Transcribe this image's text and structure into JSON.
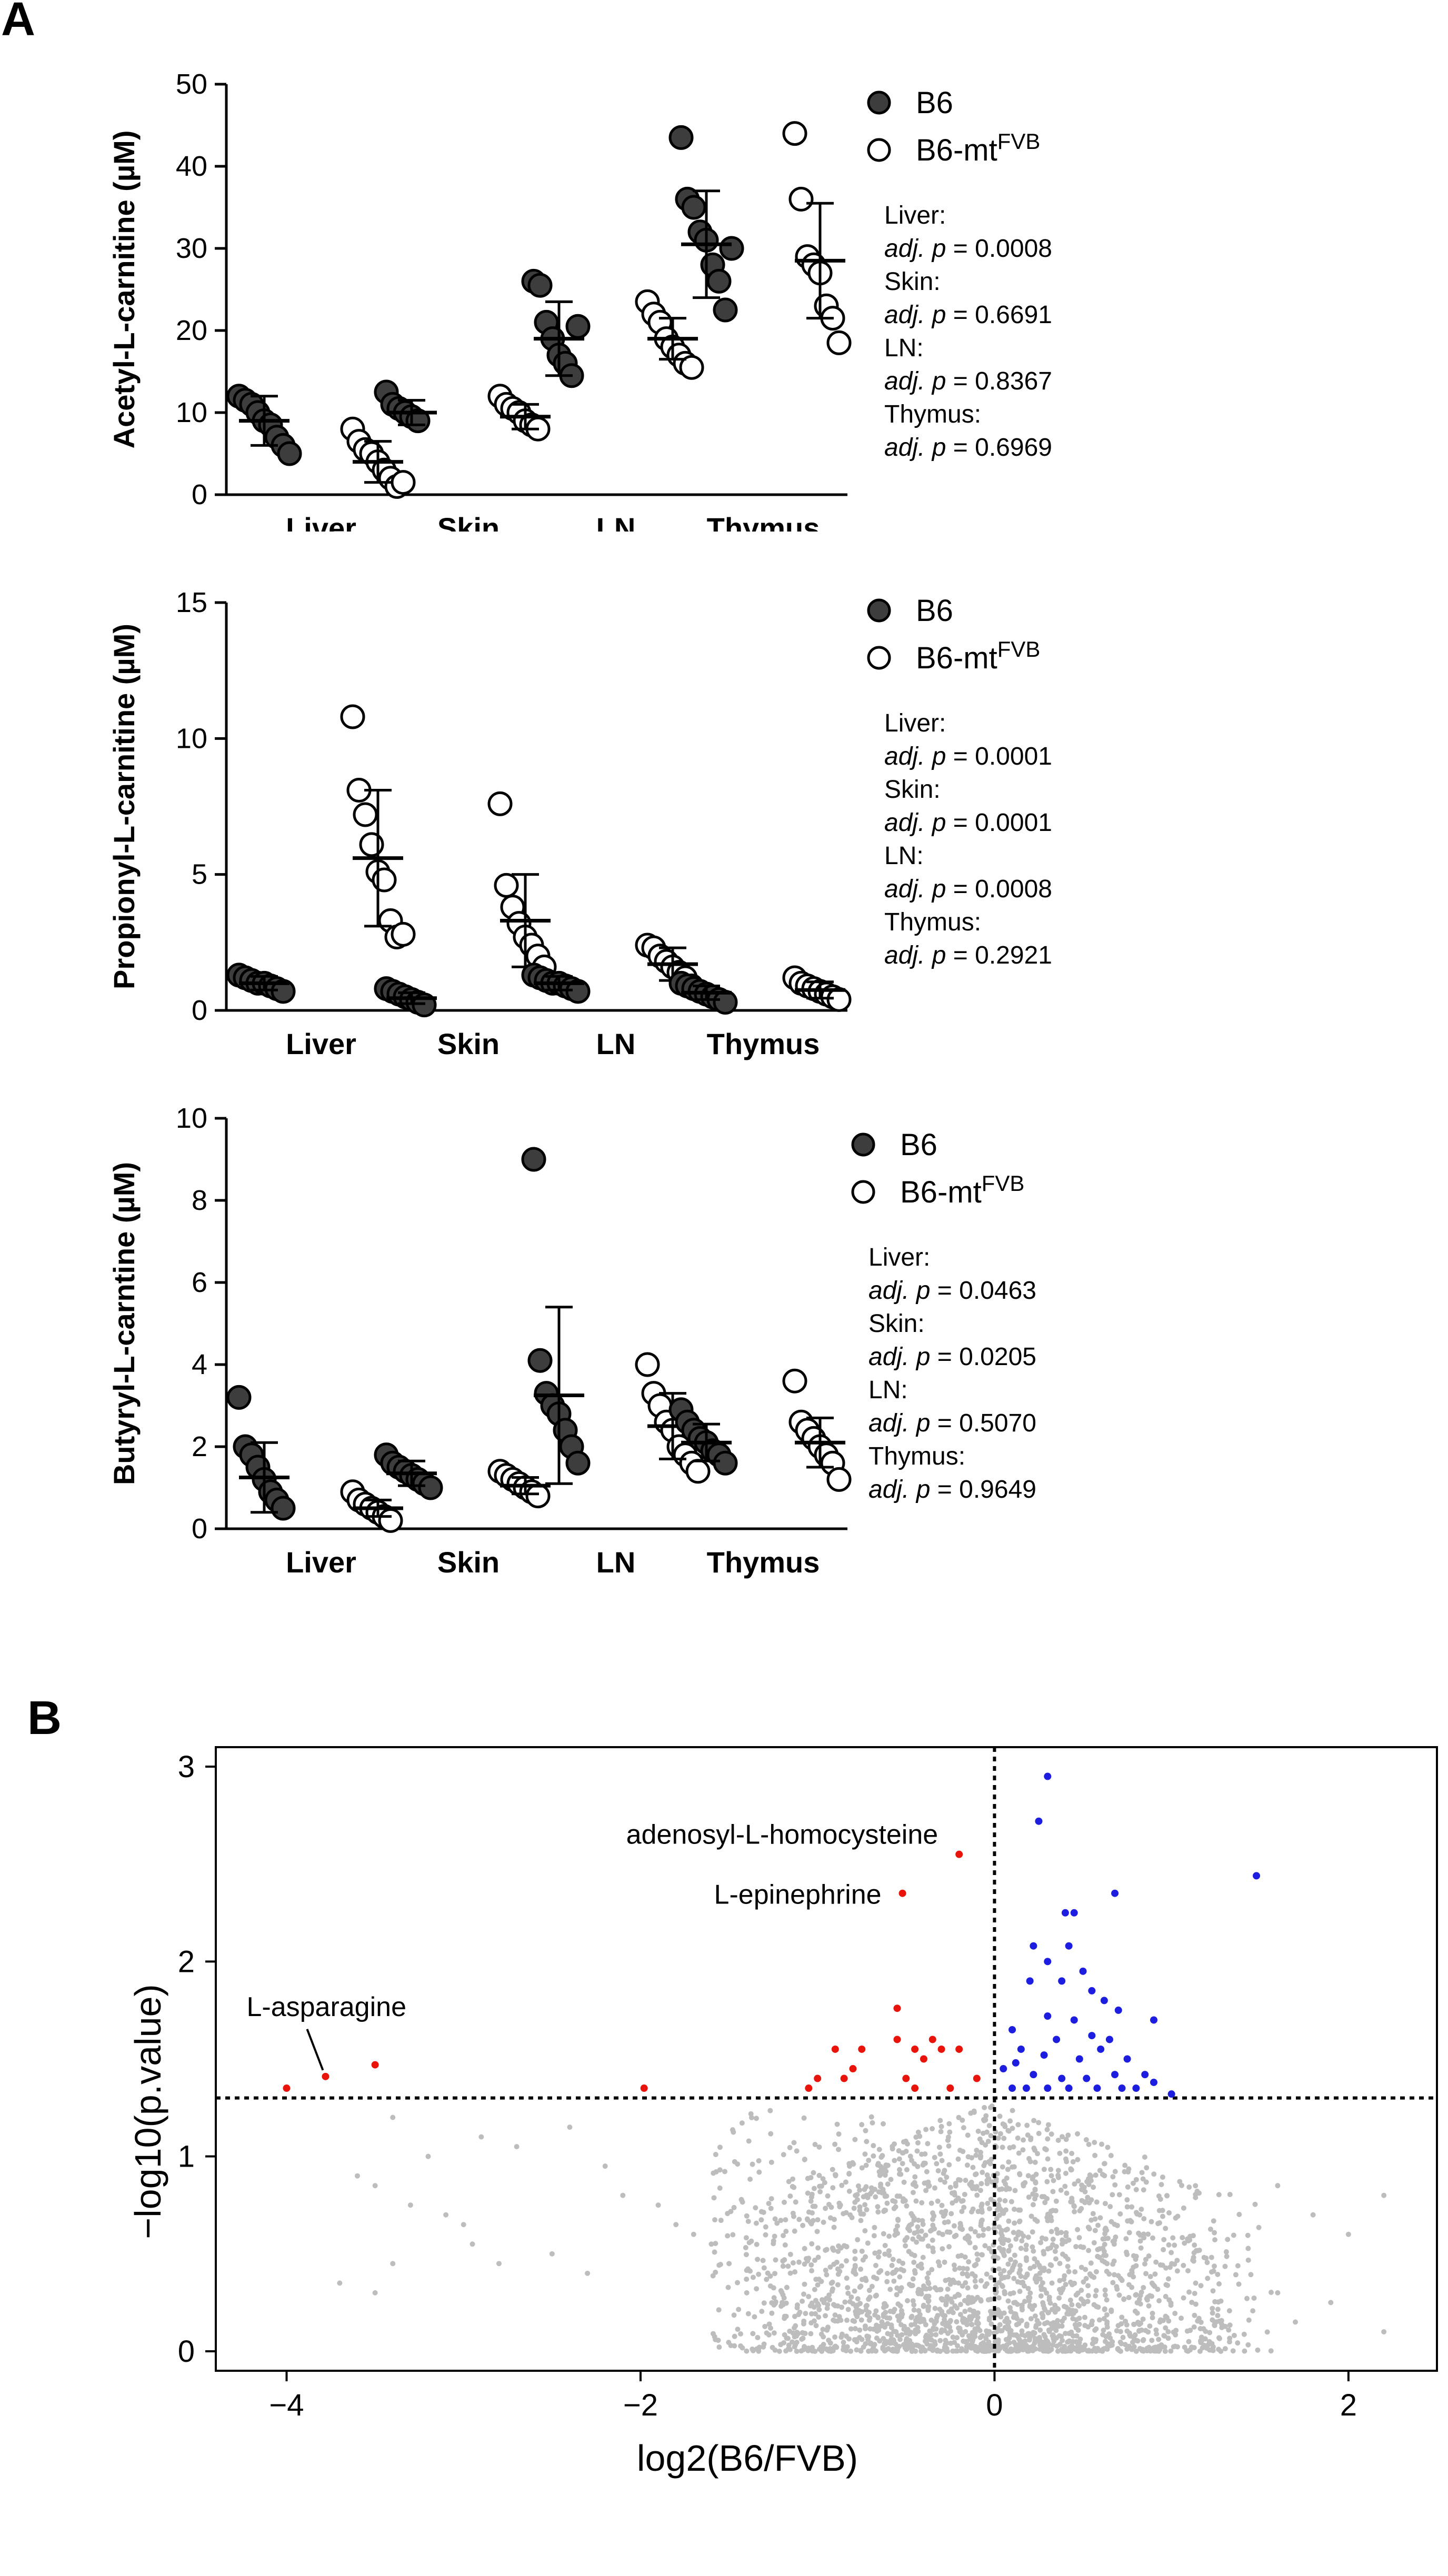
{
  "panels": [
    {
      "letter": "A"
    },
    {
      "letter": "B"
    }
  ],
  "legend": {
    "b6": "B6",
    "mt_prefix": "B6-mt",
    "mt_super": "FVB"
  },
  "stats_labels": {
    "adj": "adj.",
    "p": "p"
  },
  "chart_data": [
    {
      "type": "scatter",
      "subtype": "grouped-dot-plot",
      "title": "",
      "ylabel": "Acetyl-L-carnitine (µM)",
      "ylim": [
        0,
        50
      ],
      "yticks": [
        0,
        10,
        20,
        30,
        40,
        50
      ],
      "categories": [
        "Liver",
        "Skin",
        "LN",
        "Thymus"
      ],
      "series": [
        {
          "name": "B6",
          "fill": "#3d3d3d",
          "means": [
            9,
            10,
            19,
            30.5
          ],
          "sd": [
            3,
            1.5,
            4.5,
            6.5
          ],
          "points": [
            [
              12,
              11.5,
              11,
              10,
              9,
              8.5,
              7,
              6,
              5
            ],
            [
              12.5,
              11,
              10.5,
              10,
              9.5,
              9
            ],
            [
              26,
              25.5,
              21,
              19,
              17,
              16,
              14.5,
              20.5
            ],
            [
              43.5,
              36,
              35,
              32,
              31,
              28,
              26,
              22.5,
              30
            ]
          ]
        },
        {
          "name": "B6-mtFVB",
          "fill": "#ffffff",
          "means": [
            4,
            9.5,
            19,
            28.5
          ],
          "sd": [
            2.5,
            1.5,
            2.5,
            7
          ],
          "points": [
            [
              8,
              6.5,
              5.5,
              5,
              4,
              3,
              2,
              1,
              1.5
            ],
            [
              12,
              11,
              10.5,
              10,
              9,
              8.5,
              8
            ],
            [
              23.5,
              22,
              21,
              19,
              18,
              17,
              16,
              15.5
            ],
            [
              44,
              36,
              29,
              28,
              27,
              23,
              21.5,
              18.5
            ]
          ]
        }
      ],
      "stats": [
        {
          "tissue": "Liver:",
          "value": "= 0.0008"
        },
        {
          "tissue": "Skin:",
          "value": "= 0.6691"
        },
        {
          "tissue": "LN:",
          "value": "= 0.8367"
        },
        {
          "tissue": "Thymus:",
          "value": "= 0.6969"
        }
      ]
    },
    {
      "type": "scatter",
      "subtype": "grouped-dot-plot",
      "title": "",
      "ylabel": "Propionyl-L-carnitine (µM)",
      "ylim": [
        0,
        15
      ],
      "yticks": [
        0,
        5,
        10,
        15
      ],
      "categories": [
        "Liver",
        "Skin",
        "LN",
        "Thymus"
      ],
      "series": [
        {
          "name": "B6",
          "fill": "#3d3d3d",
          "means": [
            1.0,
            0.45,
            1.0,
            0.65
          ],
          "sd": [
            0.25,
            0.2,
            0.25,
            0.25
          ],
          "points": [
            [
              1.3,
              1.2,
              1.1,
              1.0,
              1.0,
              0.9,
              0.8,
              0.7
            ],
            [
              0.8,
              0.7,
              0.6,
              0.5,
              0.4,
              0.3,
              0.2
            ],
            [
              1.3,
              1.2,
              1.1,
              1.0,
              1.0,
              0.9,
              0.8,
              0.7
            ],
            [
              1.0,
              0.9,
              0.8,
              0.7,
              0.6,
              0.5,
              0.4,
              0.3
            ]
          ]
        },
        {
          "name": "B6-mtFVB",
          "fill": "#ffffff",
          "means": [
            5.6,
            3.3,
            1.7,
            0.75
          ],
          "sd": [
            2.5,
            1.7,
            0.6,
            0.3
          ],
          "points": [
            [
              10.8,
              8.1,
              7.2,
              6.1,
              5.1,
              4.8,
              3.3,
              2.7,
              2.8
            ],
            [
              7.6,
              4.6,
              3.8,
              3.2,
              2.7,
              2.4,
              2.0,
              1.6
            ],
            [
              2.4,
              2.3,
              2.0,
              1.8,
              1.6,
              1.4,
              1.2,
              0.9
            ],
            [
              1.2,
              1.0,
              0.9,
              0.8,
              0.7,
              0.6,
              0.5,
              0.4
            ]
          ]
        }
      ],
      "stats": [
        {
          "tissue": "Liver:",
          "value": "= 0.0001"
        },
        {
          "tissue": "Skin:",
          "value": "= 0.0001"
        },
        {
          "tissue": "LN:",
          "value": "= 0.0008"
        },
        {
          "tissue": "Thymus:",
          "value": "= 0.2921"
        }
      ]
    },
    {
      "type": "scatter",
      "subtype": "grouped-dot-plot",
      "title": "",
      "ylabel": "Butyryl-L-carntine (µM)",
      "ylim": [
        0,
        10
      ],
      "yticks": [
        0,
        2,
        4,
        6,
        8,
        10
      ],
      "categories": [
        "Liver",
        "Skin",
        "LN",
        "Thymus"
      ],
      "series": [
        {
          "name": "B6",
          "fill": "#3d3d3d",
          "means": [
            1.25,
            1.35,
            3.25,
            2.1
          ],
          "sd": [
            0.85,
            0.3,
            2.15,
            0.45
          ],
          "points": [
            [
              3.2,
              2.0,
              1.8,
              1.5,
              1.2,
              0.9,
              0.7,
              0.5
            ],
            [
              1.8,
              1.6,
              1.5,
              1.4,
              1.3,
              1.2,
              1.1,
              1.0
            ],
            [
              9.0,
              4.1,
              3.3,
              3.0,
              2.8,
              2.4,
              2.0,
              1.6
            ],
            [
              2.9,
              2.6,
              2.4,
              2.2,
              2.1,
              1.9,
              1.8,
              1.6
            ]
          ]
        },
        {
          "name": "B6-mtFVB",
          "fill": "#ffffff",
          "means": [
            0.5,
            1.05,
            2.5,
            2.1
          ],
          "sd": [
            0.2,
            0.2,
            0.8,
            0.6
          ],
          "points": [
            [
              0.9,
              0.7,
              0.6,
              0.5,
              0.4,
              0.3,
              0.2
            ],
            [
              1.4,
              1.3,
              1.2,
              1.1,
              1.0,
              0.9,
              0.8
            ],
            [
              4.0,
              3.3,
              3.0,
              2.6,
              2.4,
              2.0,
              1.8,
              1.6,
              1.4
            ],
            [
              3.6,
              2.6,
              2.4,
              2.2,
              2.0,
              1.8,
              1.6,
              1.2
            ]
          ]
        }
      ],
      "stats": [
        {
          "tissue": "Liver:",
          "value": "= 0.0463"
        },
        {
          "tissue": "Skin:",
          "value": "= 0.0205"
        },
        {
          "tissue": "LN:",
          "value": "= 0.5070"
        },
        {
          "tissue": "Thymus:",
          "value": "= 0.9649"
        }
      ]
    },
    {
      "type": "scatter",
      "subtype": "volcano",
      "title": "",
      "xlabel": "log2(B6/FVB)",
      "ylabel": "−log10(p.value)",
      "xlim": [
        -4.4,
        2.5
      ],
      "ylim": [
        -0.1,
        3.1
      ],
      "xticks": [
        -4,
        -2,
        0,
        2
      ],
      "xtick_labels": [
        "−4",
        "−2",
        "0",
        "2"
      ],
      "yticks": [
        0,
        1,
        2,
        3
      ],
      "threshold_y": 1.3,
      "threshold_x": 0,
      "colors": {
        "down": "#e8140c",
        "up": "#1d1de0",
        "ns": "#bdbdbd"
      },
      "annotations": [
        {
          "label": "adenosyl-L-homocysteine",
          "x": -0.2,
          "y": 2.55
        },
        {
          "label": "L-epinephrine",
          "x": -0.52,
          "y": 2.35
        },
        {
          "label": "L-asparagine",
          "x": -3.78,
          "y": 1.41
        }
      ],
      "red_points": [
        [
          -4.0,
          1.35
        ],
        [
          -3.78,
          1.41
        ],
        [
          -3.5,
          1.47
        ],
        [
          -1.98,
          1.35
        ],
        [
          -1.05,
          1.35
        ],
        [
          -1.0,
          1.4
        ],
        [
          -0.9,
          1.55
        ],
        [
          -0.85,
          1.4
        ],
        [
          -0.8,
          1.45
        ],
        [
          -0.75,
          1.55
        ],
        [
          -0.55,
          1.76
        ],
        [
          -0.55,
          1.6
        ],
        [
          -0.5,
          1.4
        ],
        [
          -0.45,
          1.35
        ],
        [
          -0.45,
          1.55
        ],
        [
          -0.4,
          1.5
        ],
        [
          -0.35,
          1.6
        ],
        [
          -0.3,
          1.55
        ],
        [
          -0.25,
          1.35
        ],
        [
          -0.2,
          1.55
        ],
        [
          -0.1,
          1.4
        ],
        [
          -0.2,
          2.55
        ],
        [
          -0.52,
          2.35
        ]
      ],
      "blue_points": [
        [
          0.3,
          2.95
        ],
        [
          0.25,
          2.72
        ],
        [
          1.48,
          2.44
        ],
        [
          0.68,
          2.35
        ],
        [
          0.4,
          2.25
        ],
        [
          0.45,
          2.25
        ],
        [
          0.22,
          2.08
        ],
        [
          0.42,
          2.08
        ],
        [
          0.3,
          2.0
        ],
        [
          0.5,
          1.95
        ],
        [
          0.2,
          1.9
        ],
        [
          0.38,
          1.9
        ],
        [
          0.55,
          1.85
        ],
        [
          0.62,
          1.8
        ],
        [
          0.7,
          1.75
        ],
        [
          0.3,
          1.72
        ],
        [
          0.45,
          1.7
        ],
        [
          0.1,
          1.65
        ],
        [
          0.55,
          1.62
        ],
        [
          0.6,
          1.55
        ],
        [
          0.35,
          1.6
        ],
        [
          0.9,
          1.7
        ],
        [
          0.15,
          1.55
        ],
        [
          0.28,
          1.52
        ],
        [
          0.48,
          1.5
        ],
        [
          0.75,
          1.5
        ],
        [
          0.05,
          1.45
        ],
        [
          0.22,
          1.42
        ],
        [
          0.38,
          1.4
        ],
        [
          0.52,
          1.4
        ],
        [
          0.68,
          1.42
        ],
        [
          0.85,
          1.42
        ],
        [
          0.1,
          1.35
        ],
        [
          0.18,
          1.35
        ],
        [
          0.3,
          1.35
        ],
        [
          0.42,
          1.35
        ],
        [
          0.58,
          1.35
        ],
        [
          0.72,
          1.35
        ],
        [
          0.8,
          1.35
        ],
        [
          0.9,
          1.38
        ],
        [
          1.0,
          1.32
        ],
        [
          0.12,
          1.48
        ],
        [
          0.65,
          1.6
        ]
      ],
      "ns_left_points": [
        [
          -3.6,
          0.9
        ],
        [
          -3.5,
          0.85
        ],
        [
          -3.3,
          0.75
        ],
        [
          -3.1,
          0.7
        ],
        [
          -3.0,
          0.65
        ],
        [
          -2.95,
          0.55
        ],
        [
          -2.8,
          0.45
        ],
        [
          -3.4,
          0.45
        ],
        [
          -3.5,
          0.3
        ],
        [
          -3.7,
          0.35
        ],
        [
          -2.5,
          0.5
        ],
        [
          -2.3,
          0.4
        ],
        [
          -2.7,
          1.05
        ],
        [
          -2.2,
          0.95
        ],
        [
          -2.1,
          0.8
        ],
        [
          -1.9,
          0.75
        ],
        [
          -1.8,
          0.65
        ],
        [
          -1.7,
          0.6
        ],
        [
          -3.2,
          1.0
        ],
        [
          -3.4,
          1.2
        ],
        [
          -2.9,
          1.1
        ],
        [
          -2.4,
          1.15
        ],
        [
          -1.6,
          0.55
        ],
        [
          -1.5,
          0.45
        ],
        [
          -1.4,
          0.3
        ],
        [
          -1.2,
          0.25
        ],
        [
          -1.1,
          0.2
        ]
      ]
    }
  ]
}
